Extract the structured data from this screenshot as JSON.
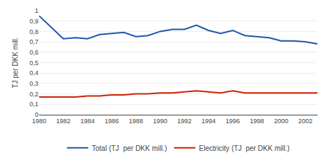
{
  "chart_data": {
    "type": "line",
    "x": [
      1980,
      1981,
      1982,
      1983,
      1984,
      1985,
      1986,
      1987,
      1988,
      1989,
      1990,
      1991,
      1992,
      1993,
      1994,
      1995,
      1996,
      1997,
      1998,
      1999,
      2000,
      2001,
      2002,
      2003
    ],
    "series": [
      {
        "name": "Total (TJ  per DKK mill.)",
        "color": "#2255aa",
        "values": [
          0.95,
          0.84,
          0.73,
          0.74,
          0.73,
          0.77,
          0.78,
          0.79,
          0.75,
          0.76,
          0.8,
          0.82,
          0.82,
          0.86,
          0.81,
          0.78,
          0.81,
          0.76,
          0.75,
          0.74,
          0.71,
          0.71,
          0.7,
          0.68
        ]
      },
      {
        "name": "Electricity (TJ  per DKK mill.)",
        "color": "#cc2200",
        "values": [
          0.17,
          0.17,
          0.17,
          0.17,
          0.18,
          0.18,
          0.19,
          0.19,
          0.2,
          0.2,
          0.21,
          0.21,
          0.22,
          0.23,
          0.22,
          0.21,
          0.23,
          0.21,
          0.21,
          0.21,
          0.21,
          0.21,
          0.21,
          0.21
        ]
      }
    ],
    "ylabel": "TJ per DKK mill.",
    "xlim": [
      1980,
      2003
    ],
    "xticks": [
      1980,
      1982,
      1984,
      1986,
      1988,
      1990,
      1992,
      1994,
      1996,
      1998,
      2000,
      2002
    ],
    "ylim": [
      0,
      1.0
    ],
    "yticks": [
      0,
      {
        "value": 0.1,
        "label": "0,1"
      },
      {
        "value": 0.2,
        "label": "0,2"
      },
      {
        "value": 0.3,
        "label": "0,3"
      },
      {
        "value": 0.4,
        "label": "0,4"
      },
      {
        "value": 0.5,
        "label": "0,5"
      },
      {
        "value": 0.6,
        "label": "0,6"
      },
      {
        "value": 0.7,
        "label": "0,7"
      },
      {
        "value": 0.8,
        "label": "0,8"
      },
      {
        "value": 0.9,
        "label": "0,9"
      },
      1
    ],
    "grid": true,
    "legend": "bottom"
  }
}
